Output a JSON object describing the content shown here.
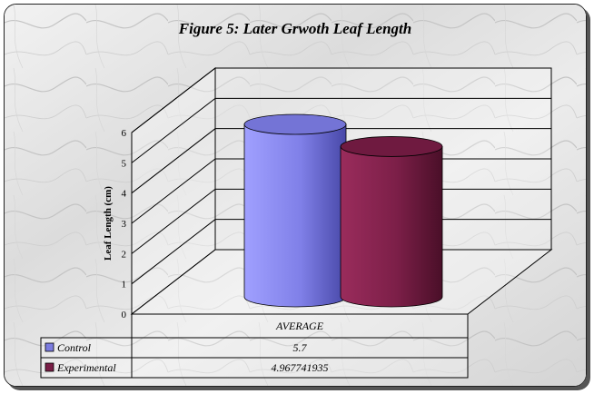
{
  "chart_data": {
    "type": "bar",
    "title": "Figure 5: Later Grwoth Leaf Length",
    "xlabel": "",
    "ylabel": "Leaf Length (cm)",
    "categories": [
      "AVERAGE"
    ],
    "series": [
      {
        "name": "Control",
        "values": [
          5.7
        ],
        "display_value": "5.7",
        "color": "#7c7ce0"
      },
      {
        "name": "Experimental",
        "values": [
          4.967741935
        ],
        "display_value": "4.967741935",
        "color": "#7a1e47"
      }
    ],
    "yticks": [
      "0",
      "1",
      "2",
      "3",
      "4",
      "5",
      "6"
    ],
    "ylim": [
      0,
      6
    ],
    "grid": true,
    "legend": "data-table-below"
  }
}
